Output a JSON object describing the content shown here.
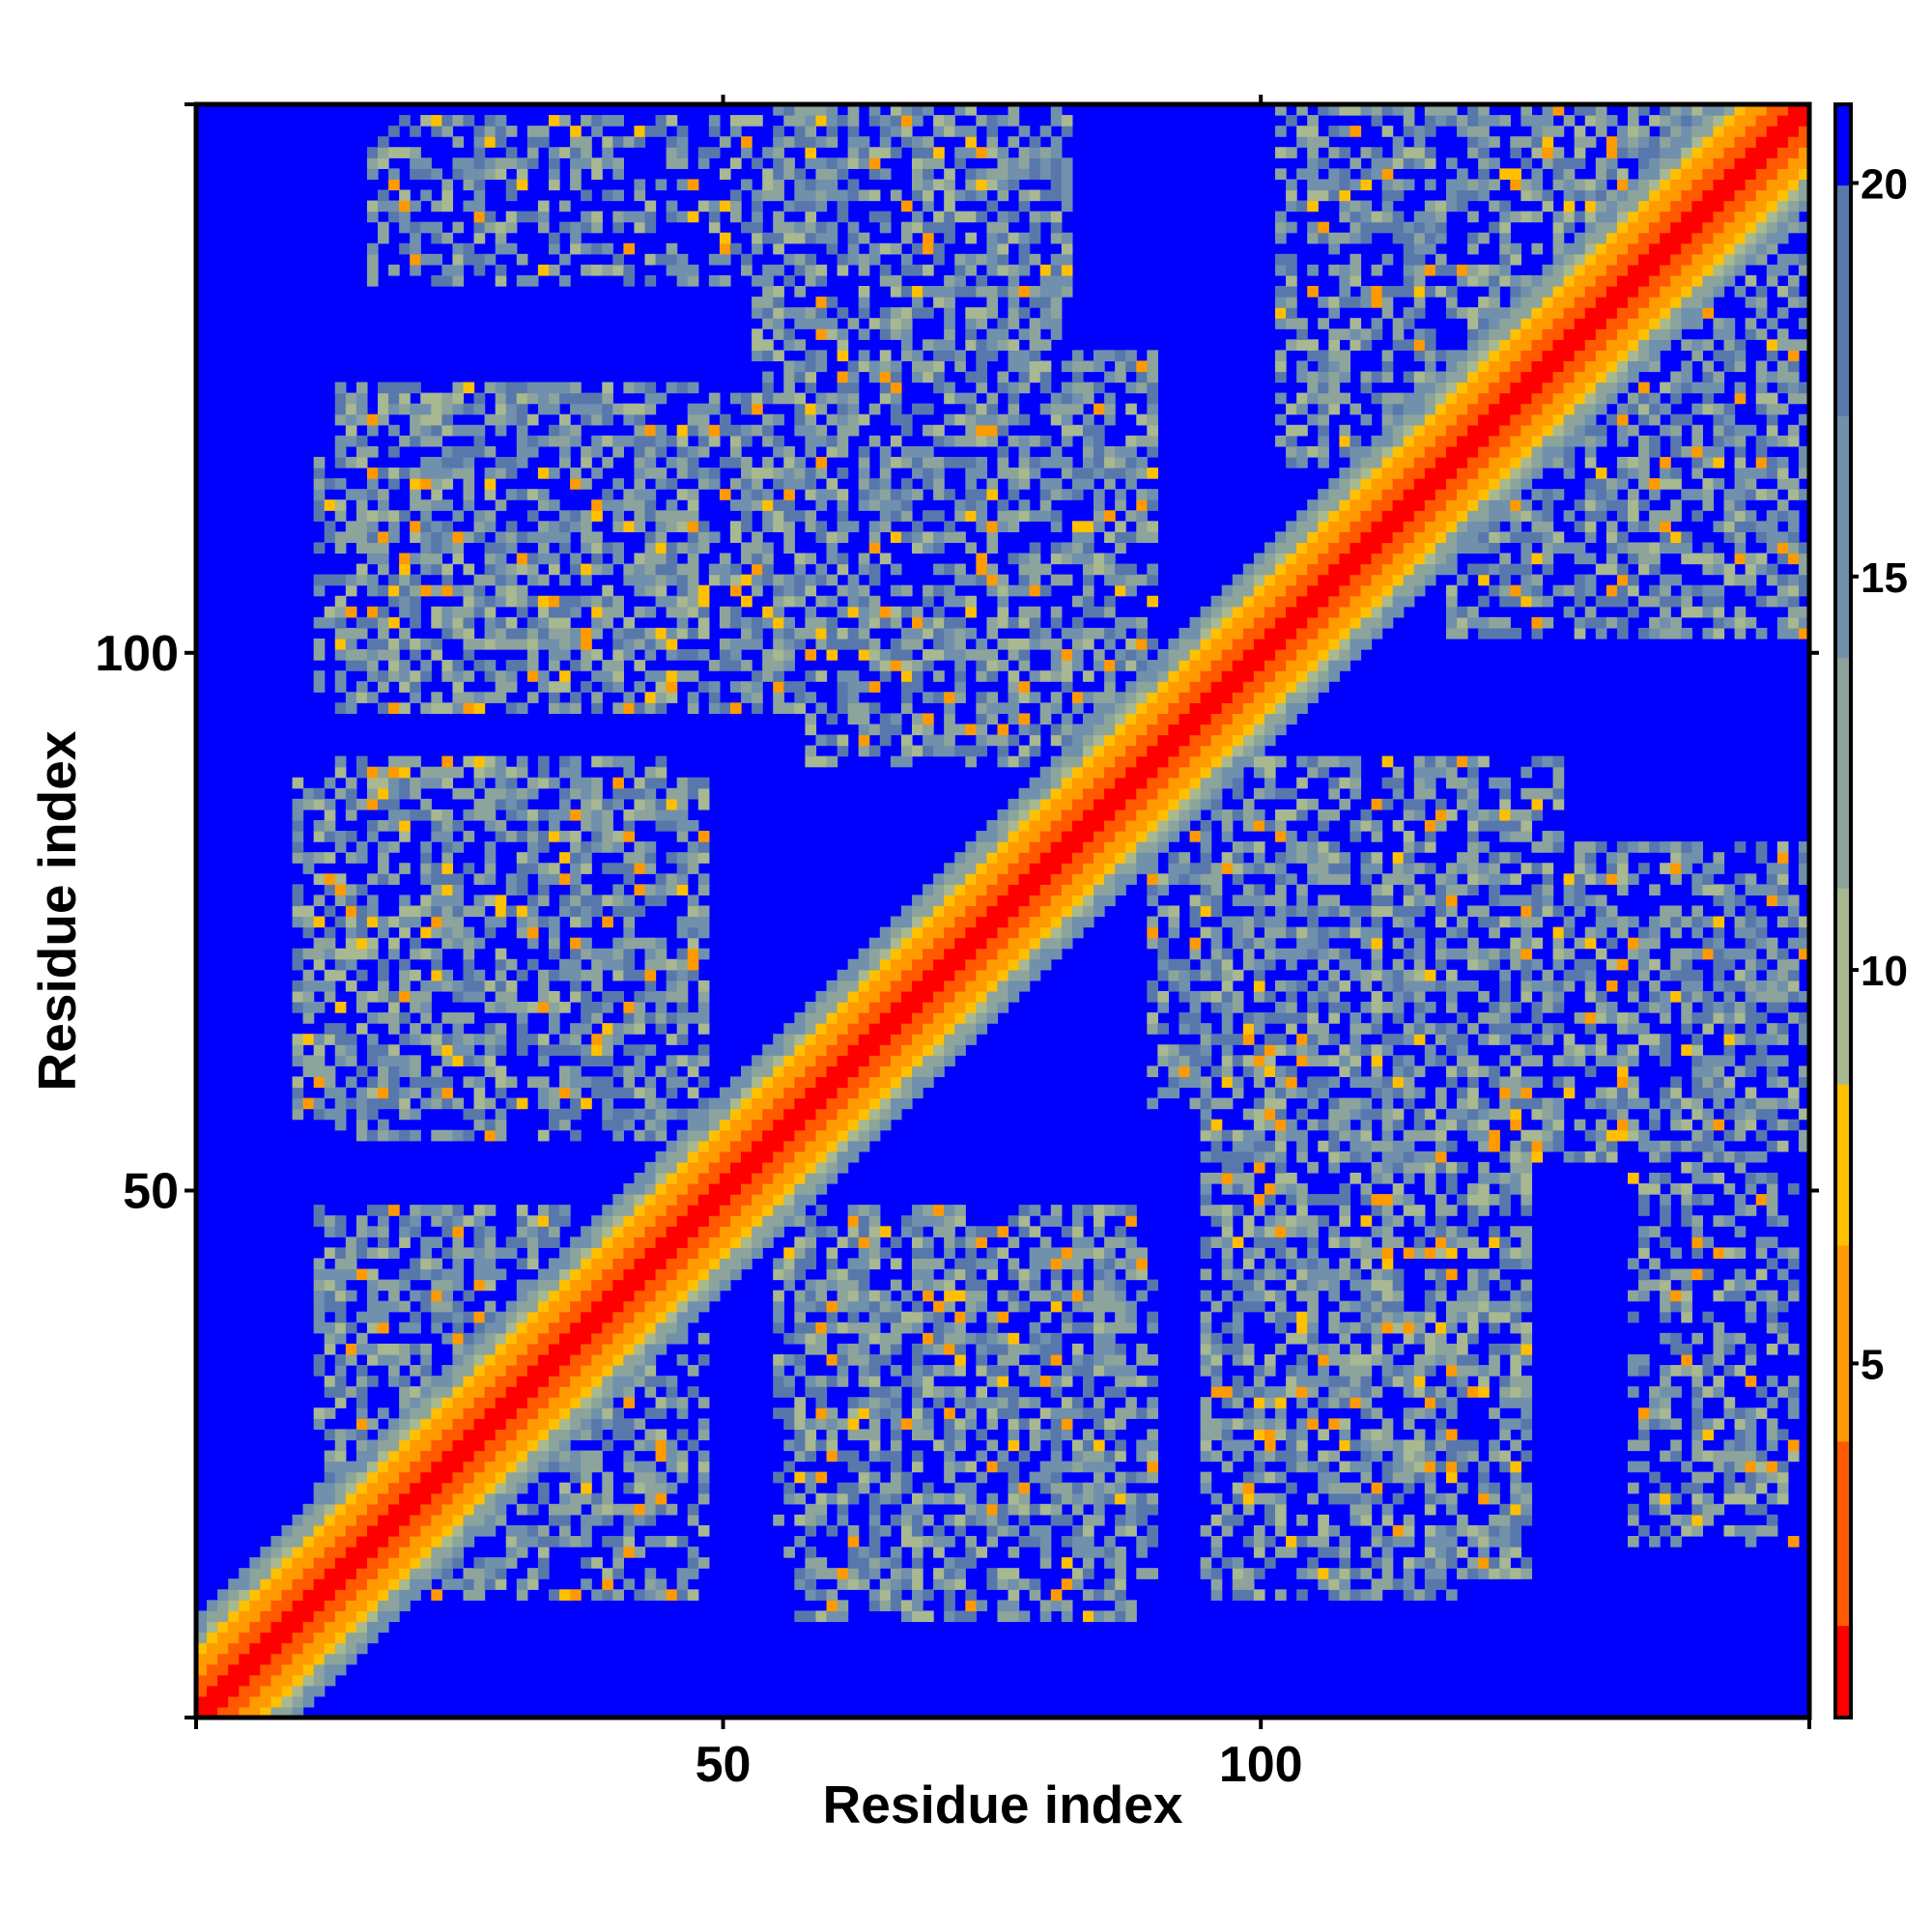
{
  "chart_data": {
    "type": "heatmap",
    "title": "",
    "xlabel": "Residue index",
    "ylabel": "Residue index",
    "n_residues": 151,
    "xlim": [
      1,
      151
    ],
    "ylim": [
      1,
      151
    ],
    "x_ticks": [
      50,
      100
    ],
    "x_tick_labels": [
      "50",
      "100"
    ],
    "y_ticks": [
      50,
      100
    ],
    "y_tick_labels": [
      "50",
      "100"
    ],
    "colorbar": {
      "range": [
        0.5,
        21
      ],
      "ticks": [
        5,
        10,
        15,
        20
      ],
      "tick_labels": [
        "5",
        "10",
        "15",
        "20"
      ],
      "colors": [
        "#ff0000",
        "#ff5a00",
        "#ff9a00",
        "#ffc000",
        "#a8b890",
        "#8ca49c",
        "#7090ac",
        "#5878ac",
        "#0000ff"
      ]
    },
    "value_levels": {
      "diagonal": 1,
      "near_diagonal": 3.5,
      "band_edge": 6.5,
      "background": 21
    },
    "contact_regions": [
      {
        "x": [
          12,
          42
        ],
        "y": [
          20,
          48
        ],
        "density": 0.6
      },
      {
        "x": [
          55,
          90
        ],
        "y": [
          14,
          44
        ],
        "density": 0.6
      },
      {
        "x": [
          95,
          125
        ],
        "y": [
          14,
          58
        ],
        "density": 0.6
      },
      {
        "x": [
          138,
          150
        ],
        "y": [
          18,
          42
        ],
        "density": 0.5
      },
      {
        "x": [
          10,
          48
        ],
        "y": [
          57,
          88
        ],
        "density": 0.6
      },
      {
        "x": [
          90,
          128
        ],
        "y": [
          58,
          90
        ],
        "density": 0.6
      },
      {
        "x": [
          128,
          151
        ],
        "y": [
          60,
          82
        ],
        "density": 0.6
      },
      {
        "x": [
          12,
          48
        ],
        "y": [
          95,
          118
        ],
        "density": 0.55
      },
      {
        "x": [
          42,
          88
        ],
        "y": [
          100,
          124
        ],
        "density": 0.6
      },
      {
        "x": [
          17,
          60
        ],
        "y": [
          135,
          150
        ],
        "density": 0.4
      },
      {
        "x": [
          53,
          78
        ],
        "y": [
          124,
          151
        ],
        "density": 0.6
      },
      {
        "x": [
          102,
          151
        ],
        "y": [
          118,
          151
        ],
        "density": 0.6
      }
    ]
  }
}
